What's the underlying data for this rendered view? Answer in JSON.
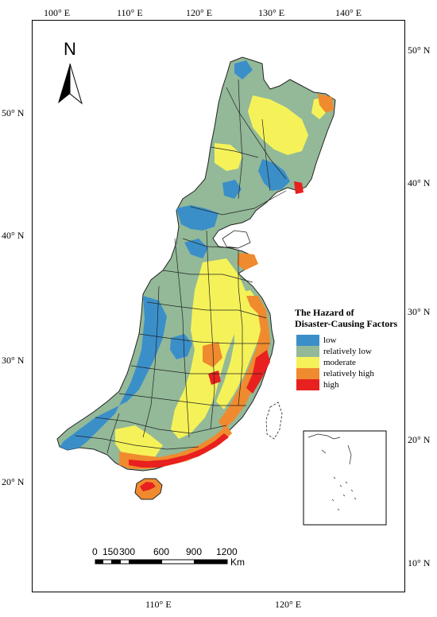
{
  "map": {
    "top_lon_labels": [
      "100° E",
      "110° E",
      "120° E",
      "130° E",
      "140° E"
    ],
    "bottom_lon_labels": [
      "110° E",
      "120° E"
    ],
    "left_lat_labels": [
      "50° N",
      "40° N",
      "30° N",
      "20° N"
    ],
    "right_lat_labels": [
      "50° N",
      "40° N",
      "30° N",
      "20° N",
      "10° N"
    ],
    "north_arrow_letter": "N"
  },
  "legend": {
    "title_line1": "The Hazard of",
    "title_line2": "Disaster-Causing Factors",
    "items": [
      {
        "label": "low",
        "color": "#3a8fc9"
      },
      {
        "label": "relatively low",
        "color": "#93b998"
      },
      {
        "label": "moderate",
        "color": "#f5f259"
      },
      {
        "label": "relatively high",
        "color": "#f08a2e"
      },
      {
        "label": "high",
        "color": "#e8201f"
      }
    ]
  },
  "scale_bar": {
    "ticks": [
      "0",
      "150",
      "300",
      "600",
      "900",
      "1200"
    ],
    "unit": "Km"
  }
}
